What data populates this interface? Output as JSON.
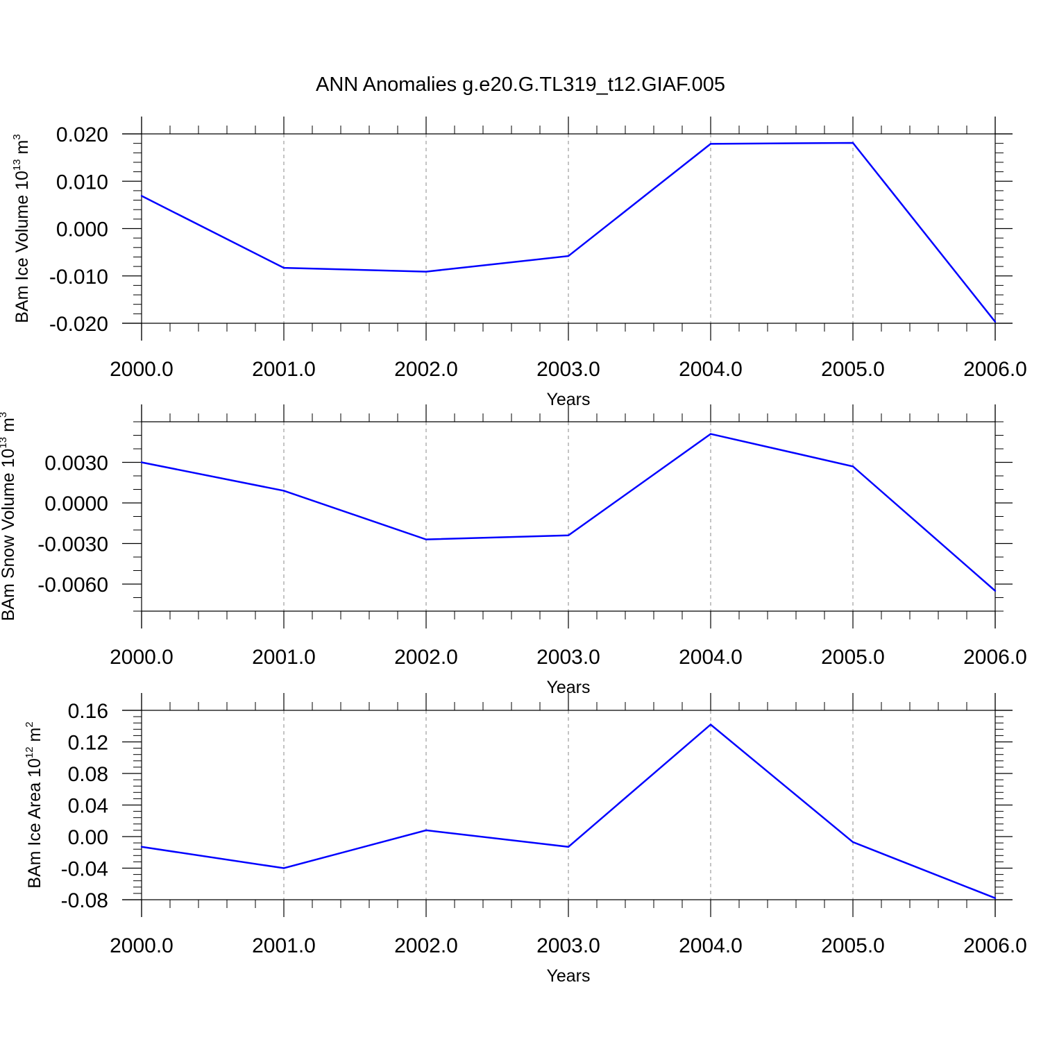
{
  "figure": {
    "title": "ANN Anomalies g.e20.G.TL319_t12.GIAF.005"
  },
  "style": {
    "line_color": "#0000ff",
    "axis_color": "#000000",
    "grid_color": "#888888"
  },
  "chart_data": [
    {
      "type": "line",
      "xlabel": "Years",
      "ylabel_main": "BAm Ice Volume 10",
      "ylabel_exp": "13",
      "ylabel_unit": " m",
      "ylabel_unit_exp": "3",
      "x": [
        2000,
        2001,
        2002,
        2003,
        2004,
        2005,
        2006
      ],
      "series": [
        {
          "values": [
            0.0069,
            -0.0083,
            -0.0091,
            -0.0058,
            0.0179,
            0.0181,
            -0.0197
          ]
        }
      ],
      "xlim": [
        2000,
        2006
      ],
      "ylim": [
        -0.02,
        0.02
      ],
      "xticks": [
        2000,
        2001,
        2002,
        2003,
        2004,
        2005,
        2006
      ],
      "xtick_labels": [
        "2000.0",
        "2001.0",
        "2002.0",
        "2003.0",
        "2004.0",
        "2005.0",
        "2006.0"
      ],
      "yticks": [
        -0.02,
        -0.01,
        0,
        0.01,
        0.02
      ],
      "ytick_labels": [
        "-0.020",
        "-0.010",
        "0.000",
        "0.010",
        "0.020"
      ],
      "yminor_step": 0.002,
      "grid": "vertical dashed at major x ticks"
    },
    {
      "type": "line",
      "xlabel": "Years",
      "ylabel_main": "BAm Snow Volume 10",
      "ylabel_exp": "13",
      "ylabel_unit": " m",
      "ylabel_unit_exp": "3",
      "x": [
        2000,
        2001,
        2002,
        2003,
        2004,
        2005,
        2006
      ],
      "series": [
        {
          "values": [
            0.003,
            0.0009,
            -0.0027,
            -0.0024,
            0.0051,
            0.0027,
            -0.0065
          ]
        }
      ],
      "xlim": [
        2000,
        2006
      ],
      "ylim": [
        -0.008,
        0.006
      ],
      "xticks": [
        2000,
        2001,
        2002,
        2003,
        2004,
        2005,
        2006
      ],
      "xtick_labels": [
        "2000.0",
        "2001.0",
        "2002.0",
        "2003.0",
        "2004.0",
        "2005.0",
        "2006.0"
      ],
      "yticks": [
        -0.006,
        -0.003,
        0,
        0.003
      ],
      "ytick_labels": [
        "-0.0060",
        "-0.0030",
        "0.0000",
        "0.0030"
      ],
      "yminor_step": 0.001,
      "grid": "vertical dashed at major x ticks"
    },
    {
      "type": "line",
      "xlabel": "Years",
      "ylabel_main": "BAm Ice Area 10",
      "ylabel_exp": "12",
      "ylabel_unit": " m",
      "ylabel_unit_exp": "2",
      "x": [
        2000,
        2001,
        2002,
        2003,
        2004,
        2005,
        2006
      ],
      "series": [
        {
          "values": [
            -0.013,
            -0.04,
            0.008,
            -0.013,
            0.142,
            -0.007,
            -0.078
          ]
        }
      ],
      "xlim": [
        2000,
        2006
      ],
      "ylim": [
        -0.08,
        0.16
      ],
      "xticks": [
        2000,
        2001,
        2002,
        2003,
        2004,
        2005,
        2006
      ],
      "xtick_labels": [
        "2000.0",
        "2001.0",
        "2002.0",
        "2003.0",
        "2004.0",
        "2005.0",
        "2006.0"
      ],
      "yticks": [
        -0.08,
        -0.04,
        0,
        0.04,
        0.08,
        0.12,
        0.16
      ],
      "ytick_labels": [
        "-0.08",
        "-0.04",
        "0.00",
        "0.04",
        "0.08",
        "0.12",
        "0.16"
      ],
      "yminor_step": 0.008,
      "grid": "vertical dashed at major x ticks"
    }
  ]
}
